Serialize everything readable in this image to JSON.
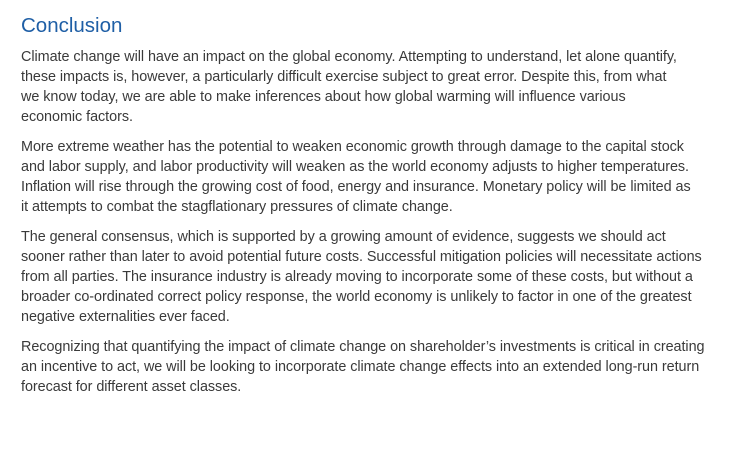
{
  "section": {
    "heading": "Conclusion",
    "paragraphs": [
      {
        "lines": [
          "Climate change will have an impact on the global economy. Attempting to understand, let alone quantify,",
          "these impacts is, however, a particularly difficult exercise subject to great error. Despite this, from what",
          "we know today, we are able to make inferences about how global warming will influence various",
          "economic factors."
        ]
      },
      {
        "lines": [
          "More extreme weather has the potential to weaken economic growth through damage to the capital stock",
          "and labor supply, and labor productivity will weaken as the world economy adjusts to higher temperatures.",
          "Inflation will rise through the growing cost of food, energy and insurance. Monetary policy will be limited as",
          "it attempts to combat the stagflationary pressures of climate change."
        ]
      },
      {
        "lines": [
          "The general consensus, which is supported by a growing amount of evidence, suggests we should act",
          "sooner rather than later to avoid potential future costs. Successful mitigation policies will necessitate actions",
          "from all parties. The insurance industry is already moving to incorporate some of these costs, but without a",
          "broader co-ordinated correct policy response, the world economy is unlikely to factor in one of the greatest",
          "negative externalities ever faced."
        ]
      },
      {
        "lines": [
          "Recognizing that quantifying the impact of climate change on shareholder’s investments is critical in creating",
          "an incentive to act, we will be looking to incorporate climate change effects into an extended long-run return",
          "forecast for different asset classes."
        ]
      }
    ]
  },
  "colors": {
    "heading": "#1f5fa6",
    "body_text": "#3a3a3a",
    "background": "#ffffff"
  }
}
